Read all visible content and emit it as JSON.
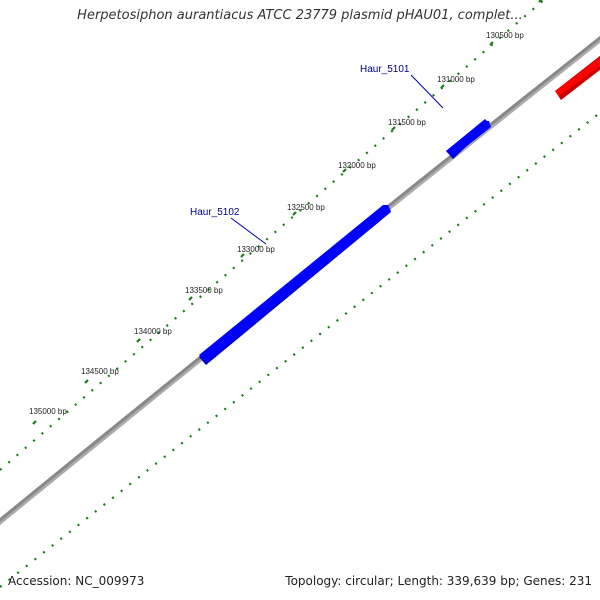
{
  "title": "Herpetosiphon aurantiacus ATCC 23779 plasmid pHAU01, complet...",
  "footer": {
    "accession": "Accession: NC_009973",
    "summary": "Topology: circular; Length: 339,639 bp; Genes: 231"
  },
  "colors": {
    "backbone": "#808080",
    "tick": "#1a7a1a",
    "gene_forward": "#0000ff",
    "gene_reverse": "#ff0000",
    "gene_label": "#00008b"
  },
  "ticks": [
    "130500 bp",
    "131000 bp",
    "131500 bp",
    "132000 bp",
    "132500 bp",
    "133000 bp",
    "133500 bp",
    "134000 bp",
    "134500 bp",
    "135000 bp"
  ],
  "genes": [
    {
      "label": "Haur_5101",
      "strand": "forward"
    },
    {
      "label": "Haur_5102",
      "strand": "forward"
    },
    {
      "label": "",
      "strand": "reverse"
    }
  ]
}
